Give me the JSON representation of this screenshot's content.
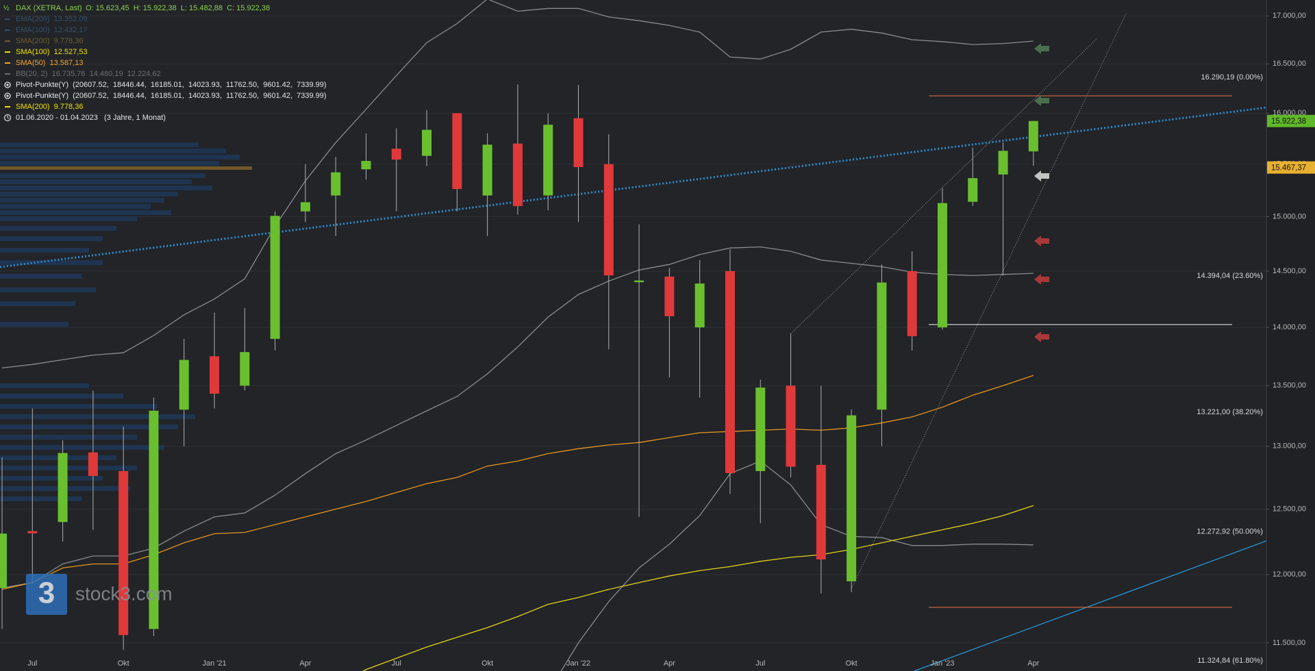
{
  "chart_data": {
    "type": "candlestick",
    "log_scale": true,
    "grid": true,
    "up_color": "#6abf2f",
    "down_color": "#e0393a",
    "categories": [
      null,
      "Jul",
      null,
      null,
      "Okt",
      null,
      null,
      "Jan '21",
      null,
      null,
      "Apr",
      null,
      null,
      "Jul",
      null,
      null,
      "Okt",
      null,
      null,
      "Jan '22",
      null,
      null,
      "Apr",
      null,
      null,
      "Jul",
      null,
      null,
      "Okt",
      null,
      null,
      "Jan '23",
      null,
      null,
      "Apr"
    ],
    "open": [
      11900,
      12330,
      12400,
      12950,
      12800,
      11600,
      13300,
      13750,
      13500,
      13900,
      15050,
      15200,
      15450,
      15650,
      15580,
      16000,
      15200,
      15700,
      15200,
      15950,
      15500,
      14400,
      14450,
      14000,
      14500,
      12800,
      13500,
      12850,
      11950,
      13300,
      14500,
      14000,
      15140,
      15400,
      15623.45
    ],
    "high": [
      12910,
      13310,
      13050,
      13460,
      13160,
      13400,
      13900,
      14130,
      14170,
      15050,
      15500,
      15570,
      15800,
      15850,
      16030,
      16000,
      15800,
      16290,
      16000,
      16285,
      15790,
      14930,
      14530,
      14600,
      14700,
      13550,
      13950,
      13500,
      13300,
      14560,
      14680,
      15270,
      15660,
      15710,
      15922.38
    ],
    "low": [
      11600,
      11930,
      12250,
      12340,
      11450,
      11550,
      13000,
      13310,
      13460,
      13800,
      14950,
      14820,
      15350,
      15050,
      15480,
      15050,
      14820,
      15020,
      15060,
      14950,
      13810,
      12440,
      13570,
      13400,
      12620,
      12390,
      12750,
      11860,
      11870,
      13000,
      13800,
      13980,
      15100,
      14460,
      15482.88
    ],
    "close": [
      12311,
      12313,
      12945,
      12761,
      11556,
      13291,
      13719,
      13433,
      13786,
      15008,
      15136,
      15421,
      15531,
      15544,
      15835,
      15261,
      15689,
      15100,
      15885,
      15471,
      14461,
      14415,
      14098,
      14388,
      12784,
      13484,
      12835,
      12114,
      13253,
      14397,
      13924,
      15128,
      15365,
      15629,
      15922.38
    ],
    "overlays": [
      {
        "color": "#8a8c90",
        "values": [
          13650,
          13680,
          13720,
          13760,
          13780,
          13930,
          14110,
          14250,
          14430,
          14910,
          15340,
          15710,
          16040,
          16380,
          16720,
          16920,
          17180,
          17050,
          17080,
          17080,
          16990,
          16950,
          16900,
          16830,
          16570,
          16550,
          16650,
          16830,
          16860,
          16820,
          16750,
          16730,
          16700,
          16710,
          16735.76
        ]
      },
      {
        "color": "#8a8c90",
        "values": [
          11900,
          11940,
          12080,
          12140,
          12140,
          12200,
          12330,
          12440,
          12470,
          12610,
          12780,
          12940,
          13050,
          13170,
          13290,
          13410,
          13600,
          13830,
          14090,
          14290,
          14410,
          14510,
          14560,
          14650,
          14710,
          14720,
          14680,
          14600,
          14570,
          14540,
          14490,
          14470,
          14460,
          14470,
          14480.19
        ]
      },
      {
        "color": "#8a8c90",
        "values": [
          null,
          null,
          null,
          null,
          null,
          null,
          null,
          null,
          null,
          null,
          null,
          null,
          null,
          null,
          null,
          null,
          null,
          null,
          11150,
          11500,
          11800,
          12050,
          12230,
          12450,
          12780,
          12880,
          12690,
          12380,
          12290,
          12280,
          12220,
          12220,
          12230,
          12230,
          12224.62
        ]
      },
      {
        "color": "#e8961e",
        "values": [
          11890,
          11940,
          12050,
          12080,
          12080,
          12150,
          12240,
          12310,
          12320,
          12380,
          12440,
          12500,
          12560,
          12630,
          12700,
          12750,
          12840,
          12880,
          12940,
          12980,
          13010,
          13030,
          13070,
          13110,
          13120,
          13130,
          13140,
          13130,
          13150,
          13190,
          13240,
          13320,
          13420,
          13500,
          13587.13
        ]
      },
      {
        "color": "#e6d31a",
        "values": [
          null,
          null,
          null,
          null,
          null,
          null,
          null,
          null,
          null,
          null,
          null,
          11200,
          11310,
          11390,
          11470,
          11540,
          11610,
          11690,
          11780,
          11830,
          11890,
          11940,
          11990,
          12030,
          12060,
          12100,
          12130,
          12150,
          12190,
          12240,
          12290,
          12340,
          12390,
          12450,
          12527.53
        ]
      }
    ],
    "ylim": [
      11300,
      17170
    ],
    "yticks": [
      {
        "value": 11500,
        "label": "11.500,00"
      },
      {
        "value": 12000,
        "label": "12.000,00"
      },
      {
        "value": 12500,
        "label": "12.500,00"
      },
      {
        "value": 13000,
        "label": "13.000,00"
      },
      {
        "value": 13500,
        "label": "13.500,00"
      },
      {
        "value": 14000,
        "label": "14.000,00"
      },
      {
        "value": 14500,
        "label": "14.500,00"
      },
      {
        "value": 15000,
        "label": "15.000,00"
      },
      {
        "value": 15500,
        "label": "15.500,00"
      },
      {
        "value": 16000,
        "label": "16.000,00"
      },
      {
        "value": 16500,
        "label": "16.500,00"
      },
      {
        "value": 17000,
        "label": "17.000,00"
      }
    ],
    "price_tags": [
      {
        "value": 15922.38,
        "label": "15.922,38",
        "color": "#5fb829"
      },
      {
        "value": 15467.37,
        "label": "15.467,37",
        "color": "#e8b030"
      }
    ],
    "fib_levels": [
      {
        "value": 16290.19,
        "label": "16.290,19 (0.00%)"
      },
      {
        "value": 14394.04,
        "label": "14.394,04 (23.60%)"
      },
      {
        "value": 13221.0,
        "label": "13.221,00 (38.20%)"
      },
      {
        "value": 12272.92,
        "label": "12.272,92 (50.00%)"
      },
      {
        "value": 11324.84,
        "label": "11.324,84 (61.80%)"
      }
    ],
    "header": {
      "symbol": "DAX (XETRA, Last)",
      "ohlc": "O: 15.623,45  H: 15.922,38  L: 15.482,88  C: 15.922,38",
      "color": "#8fd14f"
    },
    "legend": [
      {
        "text": "EMA(200)  13.352,09",
        "color": "#34506b",
        "marker": "line"
      },
      {
        "text": "EMA(100)  12.432,17",
        "color": "#34506b",
        "marker": "line"
      },
      {
        "text": "SMA(200)  9.778,36",
        "color": "#6e5e2c",
        "marker": "line"
      },
      {
        "text": "SMA(100)  12.527,53",
        "color": "#f2e200",
        "marker": "line"
      },
      {
        "text": "SMA(50)  13.587,13",
        "color": "#f5a623",
        "marker": "line"
      },
      {
        "text": "BB(20, 2)  16.735,76  14.480,19  12.224,62",
        "color": "#6c6e72",
        "marker": "line"
      },
      {
        "text": "Pivot-Punkte(Y)  (20607.52,  18446.44,  16185.01,  14023.93,  11762.50,  9601.42,  7339.99)",
        "color": "#e6e6e6",
        "marker": "circle"
      },
      {
        "text": "Pivot-Punkte(Y)  (20607.52,  18446.44,  16185.01,  14023.93,  11762.50,  9601.42,  7339.99)",
        "color": "#e6e6e6",
        "marker": "circle"
      },
      {
        "text": "SMA(200)  9.778,36",
        "color": "#f2e200",
        "marker": "line"
      },
      {
        "text": "01.06.2020 - 01.04.2023   (3 Jahre, 1 Monat)",
        "color": "#e6e6e6",
        "marker": "clock"
      }
    ],
    "watermark": {
      "logo": "3",
      "text": "stock3.com"
    }
  }
}
